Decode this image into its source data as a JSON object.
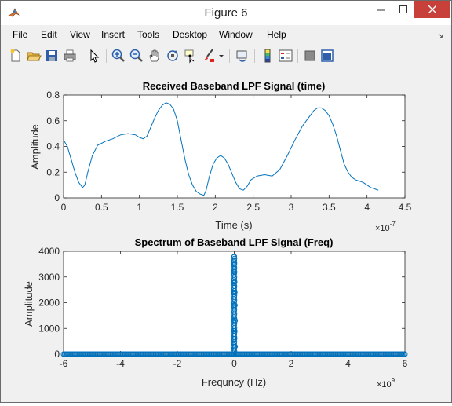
{
  "window": {
    "title": "Figure 6"
  },
  "menu": {
    "items": [
      "File",
      "Edit",
      "View",
      "Insert",
      "Tools",
      "Desktop",
      "Window",
      "Help"
    ]
  },
  "toolbar": {
    "icons": [
      "new-figure-icon",
      "open-file-icon",
      "save-icon",
      "print-icon",
      "edit-plot-icon",
      "zoom-in-icon",
      "zoom-out-icon",
      "pan-icon",
      "rotate-icon",
      "data-cursor-icon",
      "brush-icon",
      "link-plot-icon",
      "insert-colorbar-icon",
      "insert-legend-icon",
      "hide-plot-tools-icon",
      "show-plot-tools-icon"
    ]
  },
  "chart_data": [
    {
      "type": "line",
      "title": "Received Baseband LPF Signal (time)",
      "xlabel": "Time (s)",
      "ylabel": "Amplitude",
      "x_exponent_label": "×10",
      "x_exponent": "-7",
      "xlim": [
        0,
        4.5
      ],
      "ylim": [
        0,
        0.8
      ],
      "xticks": [
        "0",
        "0.5",
        "1",
        "1.5",
        "2",
        "2.5",
        "3",
        "3.5",
        "4",
        "4.5"
      ],
      "yticks": [
        "0",
        "0.2",
        "0.4",
        "0.6",
        "0.8"
      ],
      "color": "#0072BD",
      "series": [
        {
          "x": [
            0,
            0.05,
            0.1,
            0.15,
            0.2,
            0.25,
            0.28,
            0.32,
            0.38,
            0.45,
            0.55,
            0.65,
            0.75,
            0.85,
            0.95,
            1.0,
            1.05,
            1.1,
            1.15,
            1.2,
            1.25,
            1.3,
            1.35,
            1.4,
            1.45,
            1.5,
            1.55,
            1.6,
            1.65,
            1.7,
            1.75,
            1.8,
            1.85,
            1.88,
            1.92,
            1.97,
            2.02,
            2.07,
            2.12,
            2.17,
            2.22,
            2.27,
            2.32,
            2.37,
            2.42,
            2.47,
            2.55,
            2.65,
            2.75,
            2.85,
            2.95,
            3.05,
            3.15,
            3.25,
            3.3,
            3.35,
            3.4,
            3.45,
            3.5,
            3.55,
            3.6,
            3.65,
            3.7,
            3.75,
            3.8,
            3.85,
            3.9,
            3.95,
            4.0,
            4.05,
            4.1,
            4.15
          ],
          "y": [
            0.45,
            0.4,
            0.3,
            0.2,
            0.12,
            0.08,
            0.1,
            0.2,
            0.33,
            0.41,
            0.44,
            0.46,
            0.49,
            0.5,
            0.49,
            0.47,
            0.46,
            0.48,
            0.55,
            0.62,
            0.68,
            0.72,
            0.74,
            0.73,
            0.69,
            0.6,
            0.45,
            0.3,
            0.18,
            0.1,
            0.05,
            0.03,
            0.02,
            0.06,
            0.16,
            0.26,
            0.31,
            0.33,
            0.31,
            0.26,
            0.19,
            0.12,
            0.07,
            0.06,
            0.09,
            0.14,
            0.17,
            0.18,
            0.17,
            0.22,
            0.33,
            0.45,
            0.56,
            0.64,
            0.68,
            0.7,
            0.7,
            0.68,
            0.64,
            0.57,
            0.48,
            0.37,
            0.26,
            0.2,
            0.16,
            0.14,
            0.13,
            0.12,
            0.1,
            0.08,
            0.07,
            0.06
          ]
        }
      ]
    },
    {
      "type": "scatter",
      "title": "Spectrum of Baseband LPF Signal (Freq)",
      "xlabel": "Frequncy (Hz)",
      "ylabel": "Amplitude",
      "x_exponent_label": "×10",
      "x_exponent": "9",
      "xlim": [
        -6,
        6
      ],
      "ylim": [
        0,
        4000
      ],
      "xticks": [
        "-6",
        "-4",
        "-2",
        "0",
        "2",
        "4",
        "6"
      ],
      "yticks": [
        "0",
        "1000",
        "2000",
        "3000",
        "4000"
      ],
      "color": "#0072BD",
      "marker": "circle",
      "series": [
        {
          "x": [
            -0.03,
            -0.025,
            -0.02,
            -0.015,
            -0.01,
            -0.005,
            0.0,
            0.005,
            0.01,
            0.015,
            0.02,
            0.025,
            0.03,
            -0.02,
            0.02,
            -0.01,
            0.01,
            0.0,
            -0.03,
            0.03
          ],
          "y": [
            1300,
            1900,
            2400,
            2800,
            3200,
            3500,
            3800,
            3500,
            3200,
            2800,
            2400,
            1900,
            1300,
            900,
            900,
            600,
            600,
            3650,
            300,
            300
          ]
        }
      ],
      "baseline": {
        "xmin": -6,
        "xmax": 6,
        "y": 0
      }
    }
  ]
}
